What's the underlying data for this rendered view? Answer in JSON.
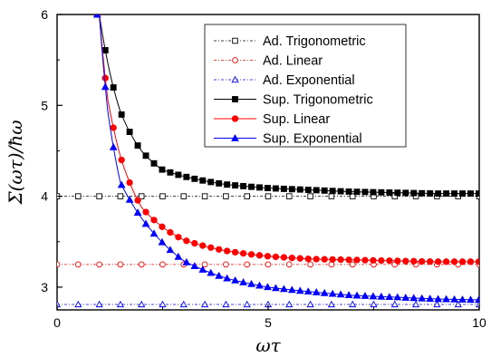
{
  "chart_data": {
    "type": "line",
    "title": "",
    "xlabel": "ωτ",
    "ylabel": "Σ(ωτ)/ħω",
    "xlim": [
      0,
      10
    ],
    "ylim": [
      2.75,
      6.0
    ],
    "x_ticks": [
      0,
      5,
      10
    ],
    "y_ticks": [
      3,
      4,
      5,
      6
    ],
    "x_tick_labels": [
      "0",
      "5",
      "10"
    ],
    "y_tick_labels": [
      "3",
      "4",
      "5",
      "6"
    ],
    "grid": false,
    "legend_position": "top-right",
    "series": [
      {
        "name": "Ad. Trigonometric",
        "kind": "adiabatic",
        "constant": 4.0,
        "x_start": 0,
        "x_end": 10,
        "marker": "open-square",
        "line": "dash-dot",
        "color": "#000000"
      },
      {
        "name": "Ad. Linear",
        "kind": "adiabatic",
        "constant": 3.25,
        "x_start": 0,
        "x_end": 10,
        "marker": "open-circle",
        "line": "dash-dot",
        "color": "#ff0000"
      },
      {
        "name": "Ad. Exponential",
        "kind": "adiabatic",
        "constant": 2.81,
        "x_start": 0,
        "x_end": 10,
        "marker": "open-triangle",
        "line": "dash-dot",
        "color": "#0000ff"
      },
      {
        "name": "Sup. Trigonometric",
        "kind": "sudden",
        "asymptote": 4.0,
        "x": [
          1.0,
          1.2,
          1.5,
          2.0,
          2.5,
          3.0,
          4.0,
          5.0,
          6.0,
          7.0,
          8.0,
          9.0,
          10.0
        ],
        "y": [
          6.0,
          5.47,
          4.93,
          4.5,
          4.29,
          4.22,
          4.13,
          4.09,
          4.07,
          4.05,
          4.04,
          4.03,
          4.03
        ],
        "marker": "filled-square",
        "line": "solid",
        "color": "#000000"
      },
      {
        "name": "Sup. Linear",
        "kind": "sudden",
        "asymptote": 3.25,
        "x": [
          1.0,
          1.2,
          1.5,
          2.0,
          2.5,
          3.0,
          4.0,
          5.0,
          6.0,
          7.0,
          8.0,
          9.0,
          10.0
        ],
        "y": [
          6.0,
          5.07,
          4.44,
          3.88,
          3.66,
          3.52,
          3.4,
          3.34,
          3.31,
          3.3,
          3.29,
          3.28,
          3.28
        ],
        "marker": "filled-circle",
        "line": "solid",
        "color": "#ff0000"
      },
      {
        "name": "Sup. Exponential",
        "kind": "sudden",
        "asymptote": 2.81,
        "x": [
          1.0,
          1.2,
          1.5,
          2.0,
          2.5,
          3.0,
          4.0,
          5.0,
          6.0,
          7.0,
          8.0,
          9.0,
          10.0
        ],
        "y": [
          6.0,
          4.94,
          4.15,
          3.76,
          3.49,
          3.29,
          3.1,
          3.0,
          2.95,
          2.91,
          2.89,
          2.87,
          2.86
        ],
        "marker": "filled-triangle",
        "line": "solid",
        "color": "#0000ff"
      }
    ]
  }
}
